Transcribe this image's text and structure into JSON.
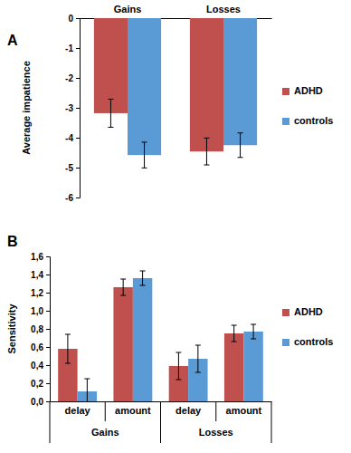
{
  "chart_data": [
    {
      "type": "bar",
      "title": "A",
      "y_label": "Average impatience",
      "categories": [
        "Gains",
        "Losses"
      ],
      "series": [
        {
          "name": "ADHD",
          "color": "#c0504d",
          "values": [
            -3.18,
            -4.46
          ],
          "errors": [
            0.47,
            0.45
          ]
        },
        {
          "name": "controls",
          "color": "#5b9bd5",
          "values": [
            -4.58,
            -4.25
          ],
          "errors": [
            0.43,
            0.41
          ]
        }
      ],
      "ylim": [
        -6,
        0
      ],
      "yticks": [
        -6,
        -5,
        -4,
        -3,
        -2,
        -1,
        0
      ],
      "grid": false,
      "legend": "right"
    },
    {
      "type": "bar",
      "title": "B",
      "y_label": "Sensitivity",
      "categories": [
        "delay",
        "amount",
        "delay",
        "amount"
      ],
      "category_groups": [
        "Gains",
        "Gains",
        "Losses",
        "Losses"
      ],
      "series": [
        {
          "name": "ADHD",
          "color": "#c0504d",
          "values": [
            0.58,
            1.26,
            0.39,
            0.75
          ],
          "errors": [
            0.16,
            0.09,
            0.15,
            0.09
          ]
        },
        {
          "name": "controls",
          "color": "#5b9bd5",
          "values": [
            0.11,
            1.36,
            0.47,
            0.77
          ],
          "errors": [
            0.14,
            0.08,
            0.15,
            0.08
          ]
        }
      ],
      "ylim": [
        0,
        1.6
      ],
      "yticks": [
        {
          "value": 0,
          "label": "0,0"
        },
        {
          "value": 0.2,
          "label": "0,2"
        },
        {
          "value": 0.4,
          "label": "0,4"
        },
        {
          "value": 0.6,
          "label": "0,6"
        },
        {
          "value": 0.8,
          "label": "0,8"
        },
        {
          "value": 1.0,
          "label": "1,0"
        },
        {
          "value": 1.2,
          "label": "1,2"
        },
        {
          "value": 1.4,
          "label": "1,4"
        },
        {
          "value": 1.6,
          "label": "1,6"
        }
      ],
      "grid": false,
      "legend": "right"
    }
  ]
}
